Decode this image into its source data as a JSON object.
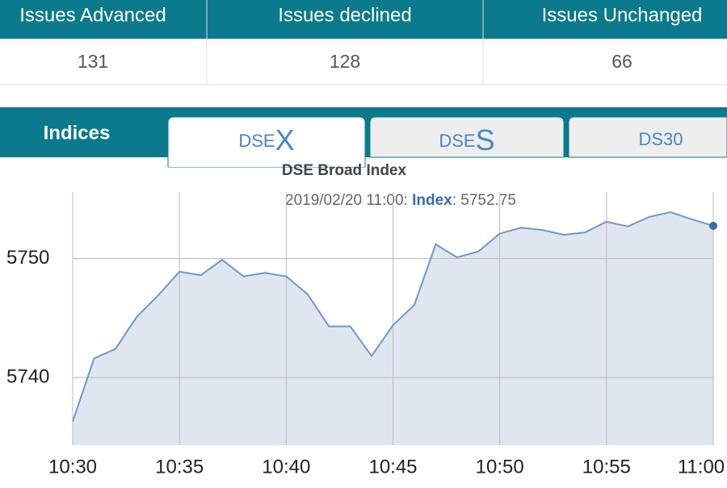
{
  "table": {
    "headers": [
      "Issues Advanced",
      "Issues declined",
      "Issues Unchanged"
    ],
    "rows": [
      [
        "131",
        "128",
        "66"
      ]
    ]
  },
  "tabs": [
    {
      "label": "Indices"
    },
    {
      "small": "DSE",
      "large": "X"
    },
    {
      "small": "DSE",
      "large": "S"
    },
    {
      "label": "DS30"
    }
  ],
  "chart_data": {
    "type": "line",
    "title": "DSE Broad Index",
    "categories": [
      "10:30",
      null,
      null,
      null,
      null,
      "10:35",
      null,
      null,
      null,
      null,
      "10:40",
      null,
      null,
      null,
      null,
      "10:45",
      null,
      null,
      null,
      null,
      "10:50",
      null,
      null,
      null,
      null,
      "10:55",
      null,
      null,
      null,
      null,
      "11:00"
    ],
    "series": [
      {
        "name": "Index",
        "color": "#6f98c8",
        "fill": "#dfe6f0",
        "values": [
          5736.3,
          5741.6,
          5742.4,
          5745.1,
          5746.9,
          5748.9,
          5748.6,
          5749.9,
          5748.5,
          5748.8,
          5748.5,
          5747.0,
          5744.3,
          5744.3,
          5741.8,
          5744.4,
          5746.1,
          5751.2,
          5750.1,
          5750.6,
          5752.1,
          5752.6,
          5752.4,
          5752.0,
          5752.2,
          5753.1,
          5752.7,
          5753.5,
          5753.9,
          5753.3,
          5752.75
        ]
      }
    ],
    "ylim": [
      5734.3,
      5755.6
    ],
    "yticks": [
      5740,
      5750
    ],
    "grid": true,
    "tooltip": {
      "time": "2019/02/20 11:00:",
      "value": ": 5752.75"
    }
  }
}
